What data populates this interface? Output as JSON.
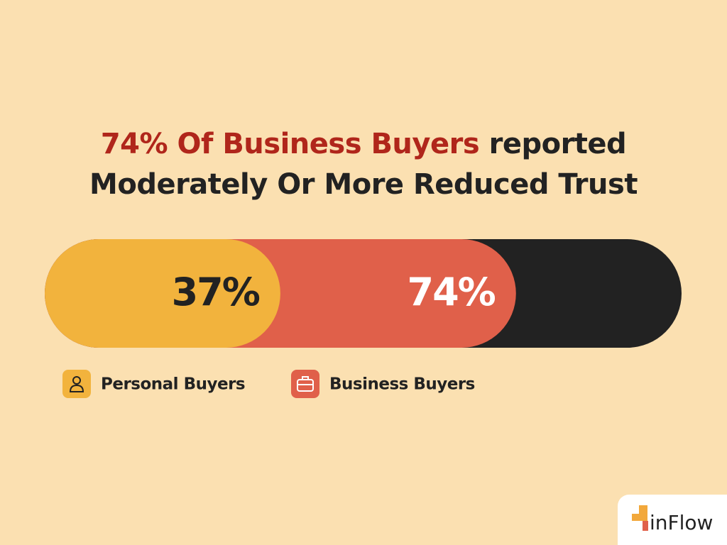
{
  "chart_data": {
    "type": "bar",
    "orientation": "horizontal",
    "title": {
      "highlight": "74% Of Business Buyers",
      "rest": "reported",
      "line2": "Moderately Or More Reduced Trust"
    },
    "xlim": [
      0,
      100
    ],
    "track_color": "#222222",
    "series": [
      {
        "name": "Personal Buyers",
        "color": "#f2b33d",
        "values": [
          37
        ],
        "value_labels": [
          "37%"
        ]
      },
      {
        "name": "Business Buyers",
        "color": "#e0604a",
        "values": [
          74
        ],
        "value_labels": [
          "74%"
        ]
      }
    ]
  },
  "logo": "inFlow"
}
